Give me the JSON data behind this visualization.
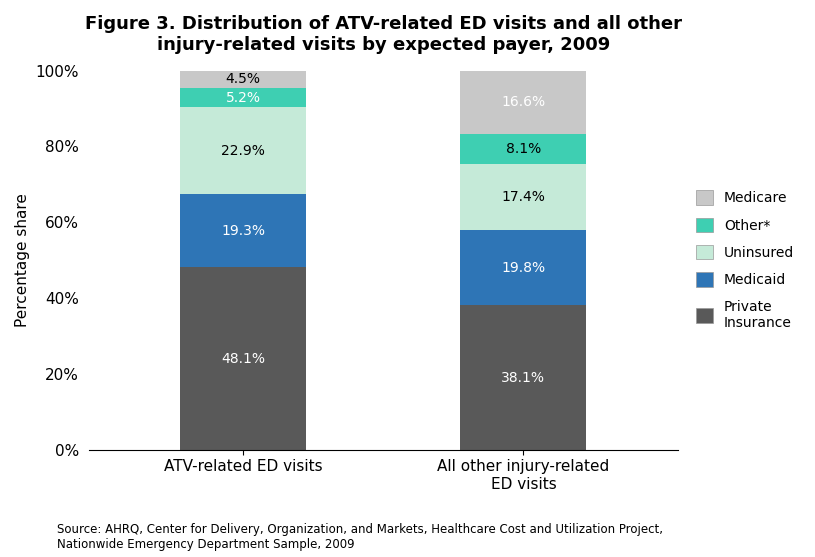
{
  "title": "Figure 3. Distribution of ATV-related ED visits and all other\ninjury-related visits by expected payer, 2009",
  "categories": [
    "ATV-related ED visits",
    "All other injury-related\nED visits"
  ],
  "segments": [
    {
      "label": "Private\nInsurance",
      "values": [
        48.1,
        38.1
      ],
      "color": "#595959"
    },
    {
      "label": "Medicaid",
      "values": [
        19.3,
        19.8
      ],
      "color": "#2E75B6"
    },
    {
      "label": "Uninsured",
      "values": [
        22.9,
        17.4
      ],
      "color": "#C5EAD8"
    },
    {
      "label": "Other*",
      "values": [
        5.2,
        8.1
      ],
      "color": "#3ECFB2"
    },
    {
      "label": "Medicare",
      "values": [
        4.5,
        16.6
      ],
      "color": "#C8C8C8"
    }
  ],
  "ylabel": "Percentage share",
  "ylim": [
    0,
    100
  ],
  "yticks": [
    0,
    20,
    40,
    60,
    80,
    100
  ],
  "ytick_labels": [
    "0%",
    "20%",
    "40%",
    "60%",
    "80%",
    "100%"
  ],
  "bar_width": 0.45,
  "label_text_colors": [
    [
      "white",
      "white"
    ],
    [
      "white",
      "white"
    ],
    [
      "black",
      "black"
    ],
    [
      "white",
      "black"
    ],
    [
      "black",
      "white"
    ]
  ],
  "source_text": "Source: AHRQ, Center for Delivery, Organization, and Markets, Healthcare Cost and Utilization Project,\nNationwide Emergency Department Sample, 2009",
  "figsize": [
    8.15,
    5.57
  ],
  "dpi": 100
}
